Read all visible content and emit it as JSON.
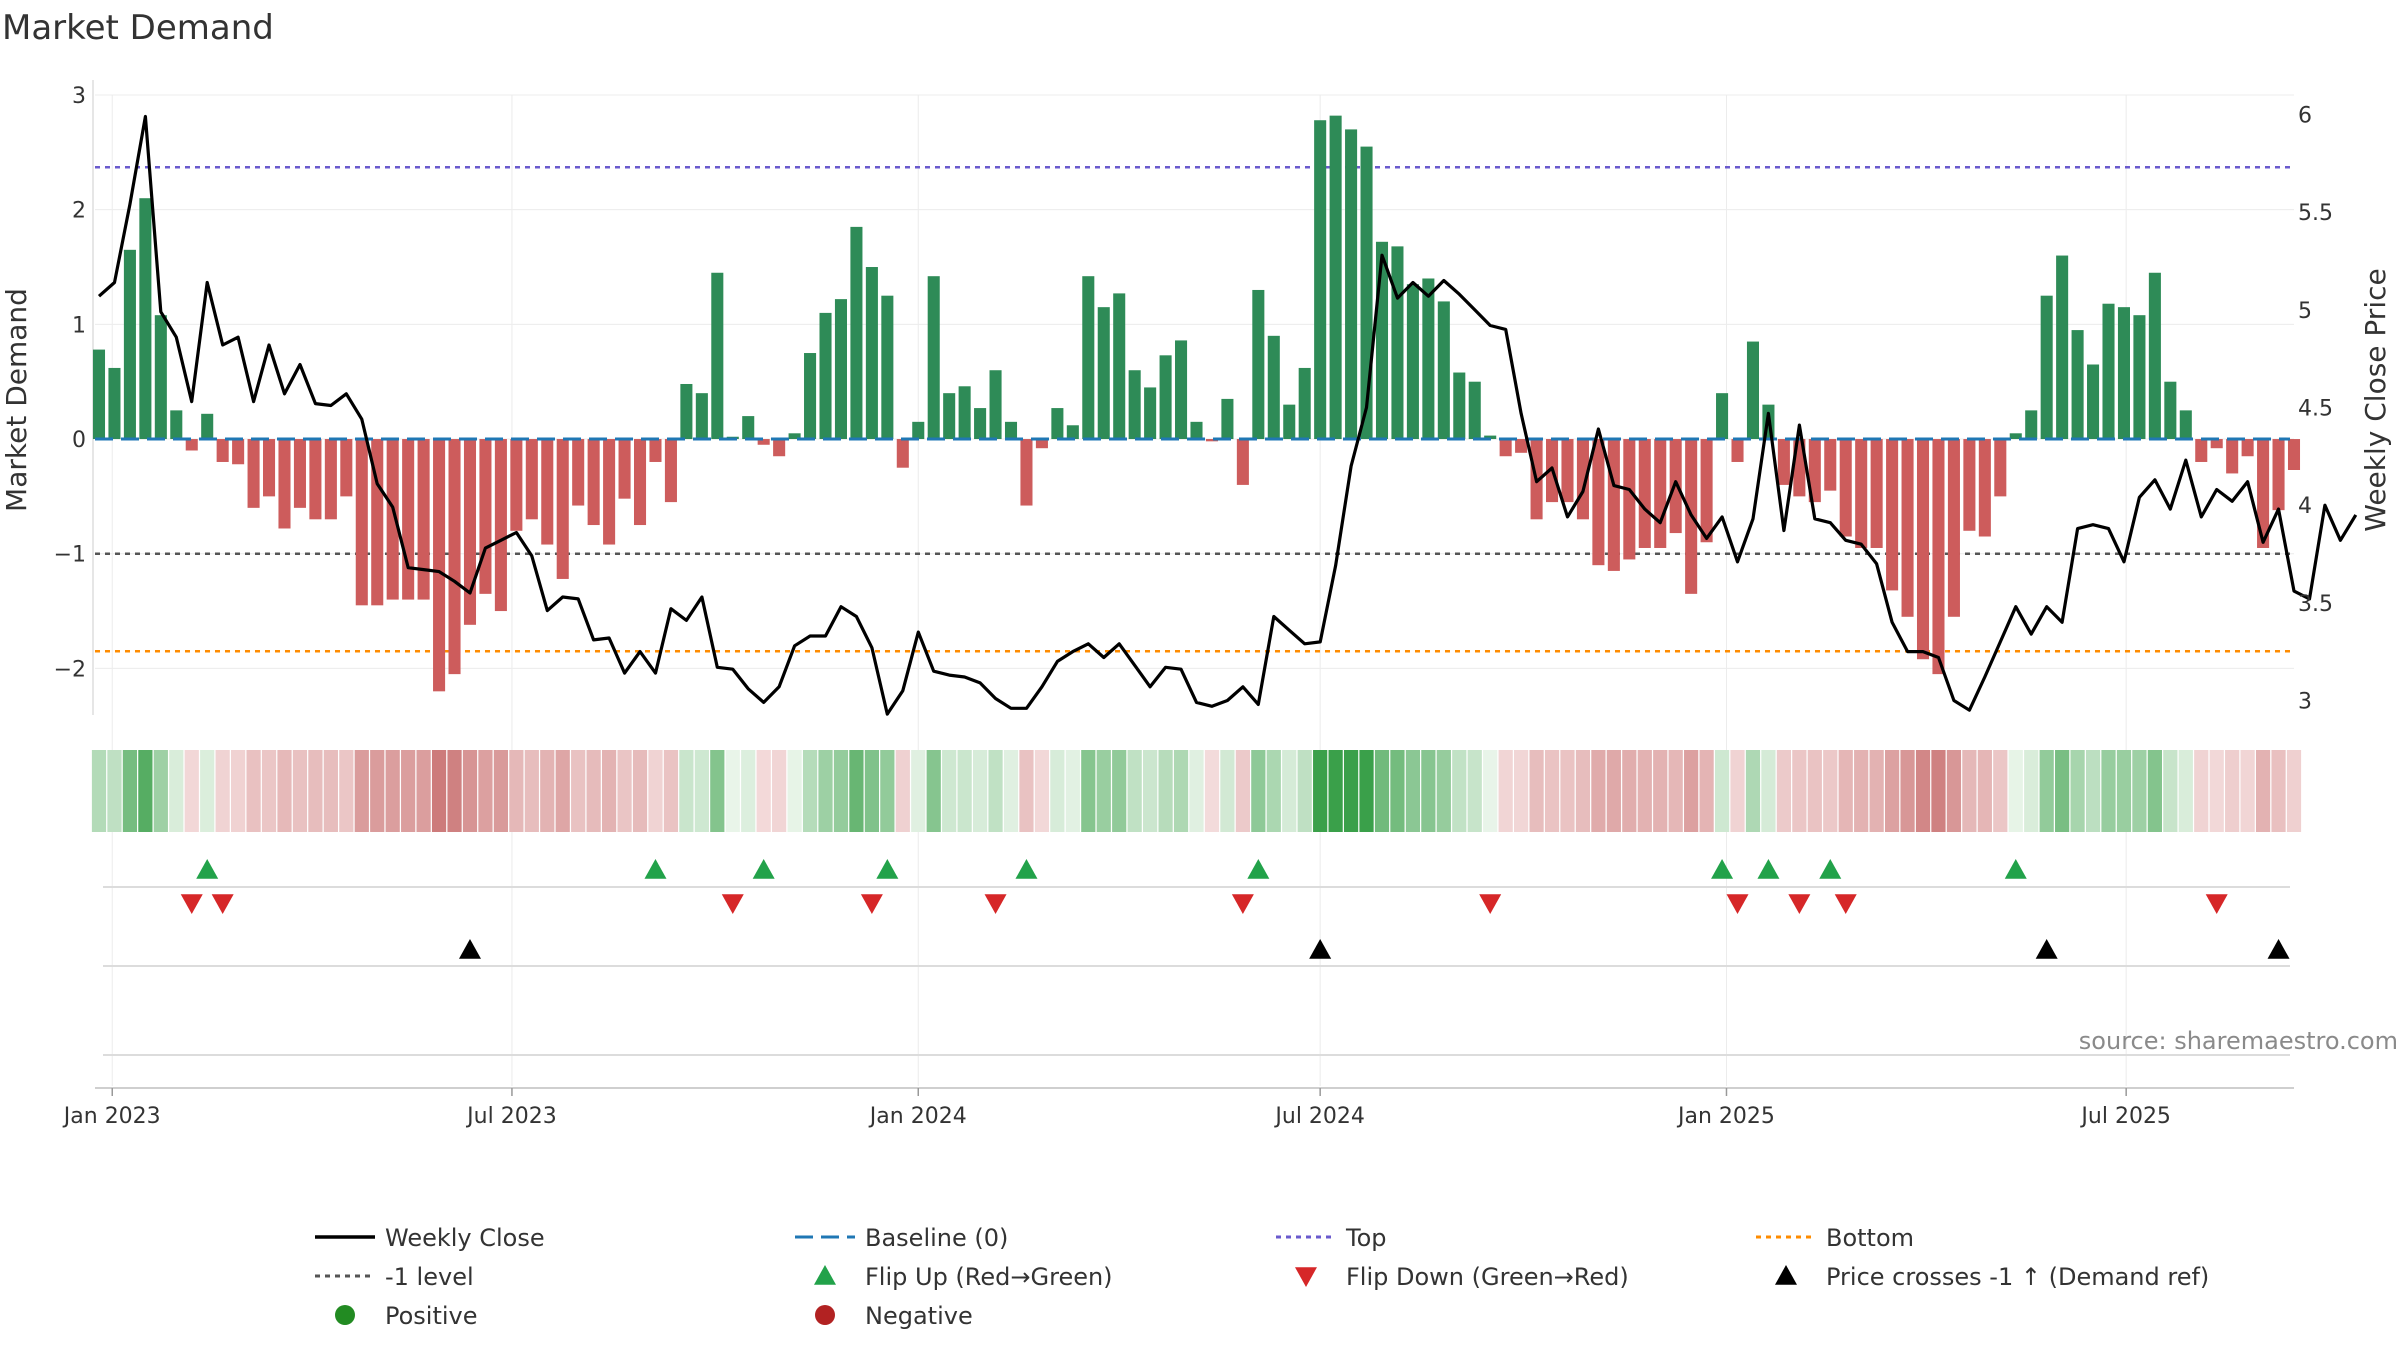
{
  "page_title": "Market Demand",
  "source": "source: sharemaestro.com",
  "colors": {
    "positive": "#2e8b57",
    "negative": "#cd5c5c",
    "top": "#6a5acd",
    "bottom": "#ff8c00",
    "minus_one": "#555555",
    "baseline": "#1f77b4",
    "flip_up": "#22a24a",
    "flip_down": "#d62728",
    "cross": "#000000",
    "legend_pos_dot": "#228b22",
    "legend_neg_dot": "#b22222"
  },
  "chart_data": {
    "type": "bar",
    "title": "Market Demand",
    "ylabel": "Market Demand",
    "y2label": "Weekly Close Price",
    "ylim": [
      -2.45,
      3.0
    ],
    "y2lim": [
      2.9,
      6.1
    ],
    "y_ticks": [
      3,
      2,
      1,
      0,
      -1,
      -2
    ],
    "y_tick_labels": [
      "3",
      "2",
      "1",
      "0",
      "−1",
      "−2"
    ],
    "y2_ticks": [
      6,
      5.5,
      5,
      4.5,
      4,
      3.5,
      3
    ],
    "y2_tick_labels": [
      "6",
      "5.5",
      "5",
      "4.5",
      "4",
      "3.5",
      "3"
    ],
    "x_start": "2022-12-26",
    "x_ticks": [
      "2023-01-01",
      "2023-07-01",
      "2024-01-01",
      "2024-07-01",
      "2025-01-01",
      "2025-07-01"
    ],
    "x_tick_labels": [
      "Jan 2023",
      "Jul 2023",
      "Jan 2024",
      "Jul 2024",
      "Jan 2025",
      "Jul 2025"
    ],
    "levels": {
      "top": 2.37,
      "bottom": -1.85,
      "minus_one": -1.0,
      "baseline": 0
    },
    "demand": [
      0.78,
      0.62,
      1.65,
      2.1,
      1.08,
      0.25,
      -0.1,
      0.22,
      -0.2,
      -0.22,
      -0.6,
      -0.5,
      -0.78,
      -0.6,
      -0.7,
      -0.7,
      -0.5,
      -1.45,
      -1.45,
      -1.4,
      -1.4,
      -1.4,
      -2.2,
      -2.05,
      -1.62,
      -1.35,
      -1.5,
      -0.8,
      -0.7,
      -0.92,
      -1.22,
      -0.58,
      -0.75,
      -0.92,
      -0.52,
      -0.75,
      -0.2,
      -0.55,
      0.48,
      0.4,
      1.45,
      0.02,
      0.2,
      -0.05,
      -0.15,
      0.05,
      0.75,
      1.1,
      1.22,
      1.85,
      1.5,
      1.25,
      -0.25,
      0.15,
      1.42,
      0.4,
      0.46,
      0.27,
      0.6,
      0.15,
      -0.58,
      -0.08,
      0.27,
      0.12,
      1.42,
      1.15,
      1.27,
      0.6,
      0.45,
      0.73,
      0.86,
      0.15,
      -0.02,
      0.35,
      -0.4,
      1.3,
      0.9,
      0.3,
      0.62,
      2.78,
      2.82,
      2.7,
      2.55,
      1.72,
      1.68,
      1.35,
      1.4,
      1.2,
      0.58,
      0.5,
      0.03,
      -0.15,
      -0.12,
      -0.7,
      -0.55,
      -0.55,
      -0.7,
      -1.1,
      -1.15,
      -1.05,
      -0.95,
      -0.95,
      -0.82,
      -1.35,
      -0.9,
      0.4,
      -0.2,
      0.85,
      0.3,
      -0.4,
      -0.5,
      -0.55,
      -0.45,
      -0.85,
      -0.95,
      -0.95,
      -1.32,
      -1.55,
      -1.92,
      -2.05,
      -1.55,
      -0.8,
      -0.85,
      -0.5,
      0.05,
      0.25,
      1.25,
      1.6,
      0.95,
      0.65,
      1.18,
      1.15,
      1.08,
      1.45,
      0.5,
      0.25,
      -0.2,
      -0.08,
      -0.3,
      -0.15,
      -0.95,
      -0.62,
      -0.27
    ],
    "weekly_close": [
      5.07,
      5.14,
      5.54,
      5.99,
      4.99,
      4.86,
      4.53,
      5.14,
      4.82,
      4.86,
      4.53,
      4.82,
      4.57,
      4.72,
      4.52,
      4.51,
      4.57,
      4.44,
      4.11,
      3.99,
      3.68,
      3.67,
      3.66,
      3.61,
      3.55,
      3.78,
      3.82,
      3.86,
      3.74,
      3.46,
      3.53,
      3.52,
      3.31,
      3.32,
      3.14,
      3.25,
      3.14,
      3.47,
      3.41,
      3.53,
      3.17,
      3.16,
      3.06,
      2.99,
      3.07,
      3.28,
      3.33,
      3.33,
      3.48,
      3.43,
      3.27,
      2.93,
      3.05,
      3.35,
      3.15,
      3.13,
      3.12,
      3.09,
      3.01,
      2.96,
      2.96,
      3.07,
      3.2,
      3.25,
      3.29,
      3.22,
      3.29,
      3.18,
      3.07,
      3.17,
      3.16,
      2.99,
      2.97,
      3.0,
      3.07,
      2.98,
      3.43,
      3.36,
      3.29,
      3.3,
      3.69,
      4.2,
      4.5,
      5.28,
      5.06,
      5.14,
      5.07,
      5.15,
      5.08,
      5.0,
      4.92,
      4.9,
      4.47,
      4.12,
      4.19,
      3.94,
      4.07,
      4.39,
      4.1,
      4.08,
      3.98,
      3.91,
      4.12,
      3.95,
      3.83,
      3.94,
      3.71,
      3.93,
      4.47,
      3.87,
      4.41,
      3.93,
      3.91,
      3.82,
      3.8,
      3.7,
      3.4,
      3.25,
      3.25,
      3.22,
      3.0,
      2.95,
      3.12,
      3.3,
      3.48,
      3.34,
      3.48,
      3.4,
      3.88,
      3.9,
      3.88,
      3.71,
      4.04,
      4.13,
      3.98,
      4.23,
      3.94,
      4.08,
      4.02,
      4.12,
      3.81,
      3.98,
      3.56,
      3.52,
      4.0,
      3.82,
      3.95
    ],
    "tile_values": [
      0.78,
      0.62,
      1.65,
      2.1,
      1.08,
      0.25,
      -0.1,
      0.22,
      -0.2,
      -0.22,
      -0.6,
      -0.5,
      -0.78,
      -0.6,
      -0.7,
      -0.7,
      -0.5,
      -1.45,
      -1.45,
      -1.4,
      -1.4,
      -1.4,
      -2.2,
      -2.05,
      -1.62,
      -1.35,
      -1.5,
      -0.8,
      -0.7,
      -0.92,
      -1.22,
      -0.58,
      -0.75,
      -0.92,
      -0.52,
      -0.75,
      -0.2,
      -0.55,
      0.48,
      0.4,
      1.45,
      0.02,
      0.2,
      -0.05,
      -0.15,
      0.05,
      0.75,
      1.1,
      1.22,
      1.85,
      1.5,
      1.25,
      -0.25,
      0.15,
      1.42,
      0.4,
      0.46,
      0.27,
      0.6,
      0.15,
      -0.58,
      -0.08,
      0.27,
      0.12,
      1.42,
      1.15,
      1.27,
      0.6,
      0.45,
      0.73,
      0.86,
      0.15,
      -0.02,
      0.35,
      -0.4,
      1.3,
      0.9,
      0.3,
      0.62,
      2.78,
      2.82,
      2.7,
      2.55,
      1.72,
      1.68,
      1.35,
      1.4,
      1.2,
      0.58,
      0.5,
      0.03,
      -0.15,
      -0.12,
      -0.7,
      -0.55,
      -0.55,
      -0.7,
      -1.1,
      -1.15,
      -1.05,
      -0.95,
      -0.95,
      -0.82,
      -1.35,
      -0.9,
      0.4,
      -0.2,
      0.85,
      0.3,
      -0.4,
      -0.5,
      -0.55,
      -0.45,
      -0.85,
      -0.95,
      -0.95,
      -1.32,
      -1.55,
      -1.92,
      -2.05,
      -1.55,
      -0.8,
      -0.85,
      -0.5,
      0.05,
      0.25,
      1.25,
      1.6,
      0.95,
      0.65,
      1.18,
      1.15,
      1.08,
      1.45,
      0.5,
      0.25,
      -0.2,
      -0.08,
      -0.3,
      -0.15,
      -0.95,
      -0.62,
      -0.27
    ],
    "flip_up_weeks": [
      7,
      36,
      43,
      51,
      60,
      75,
      105,
      108,
      112,
      124
    ],
    "flip_down_weeks": [
      6,
      8,
      41,
      50,
      58,
      74,
      90,
      106,
      110,
      113,
      137
    ],
    "price_cross_weeks": [
      24,
      79,
      126,
      141
    ],
    "legend": [
      {
        "label": "Weekly Close",
        "kind": "line",
        "color": "#000000"
      },
      {
        "label": "Baseline (0)",
        "kind": "dash",
        "color": "#1f77b4"
      },
      {
        "label": "Top",
        "kind": "dot",
        "color": "#6a5acd"
      },
      {
        "label": "Bottom",
        "kind": "dot",
        "color": "#ff8c00"
      },
      {
        "label": "-1 level",
        "kind": "dot",
        "color": "#555555"
      },
      {
        "label": "Flip Up (Red→Green)",
        "kind": "tri-up",
        "color": "#22a24a"
      },
      {
        "label": "Flip Down (Green→Red)",
        "kind": "tri-down",
        "color": "#d62728"
      },
      {
        "label": "Price crosses -1 ↑ (Demand ref)",
        "kind": "tri-up",
        "color": "#000000"
      },
      {
        "label": "Positive",
        "kind": "circle",
        "color": "#228b22"
      },
      {
        "label": "Negative",
        "kind": "circle",
        "color": "#b22222"
      }
    ]
  }
}
